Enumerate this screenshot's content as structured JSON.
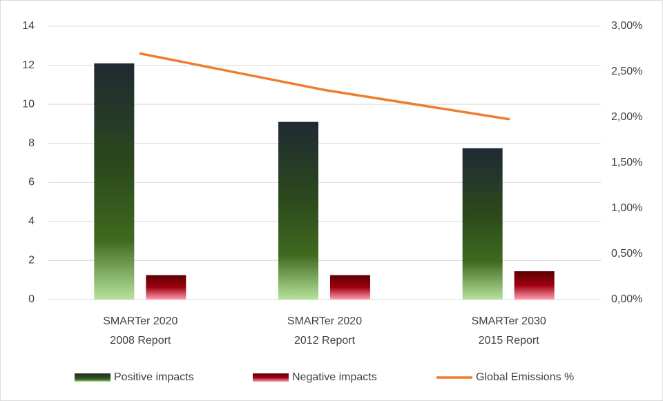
{
  "chart_data": {
    "type": "bar-line",
    "categories": [
      "SMARTer 2020\n2008 Report",
      "SMARTer 2020\n2012 Report",
      "SMARTer 2030\n2015 Report"
    ],
    "series": [
      {
        "name": "Positive impacts",
        "color": "#2c4a1c",
        "values": [
          12.1,
          9.1,
          7.75
        ]
      },
      {
        "name": "Negative impacts",
        "color": "#8b0000",
        "values": [
          1.25,
          1.25,
          1.45
        ]
      },
      {
        "name": "Global Emissions %",
        "color": "#ed7d31",
        "values": [
          2.7,
          2.3,
          1.98
        ],
        "axis": "y2",
        "type": "line"
      }
    ],
    "ylim": [
      0,
      14
    ],
    "yticks": [
      0,
      2,
      4,
      6,
      8,
      10,
      12,
      14
    ],
    "y2lim": [
      0,
      3
    ],
    "y2ticks": [
      {
        "value": 0,
        "label": "0,00%"
      },
      {
        "value": 0.5,
        "label": "0,50%"
      },
      {
        "value": 1,
        "label": "1,00%"
      },
      {
        "value": 1.5,
        "label": "1,50%"
      },
      {
        "value": 2,
        "label": "2,00%"
      },
      {
        "value": 2.5,
        "label": "2,50%"
      },
      {
        "value": 3,
        "label": "3,00%"
      }
    ],
    "grid": true,
    "legend": "bottom"
  }
}
